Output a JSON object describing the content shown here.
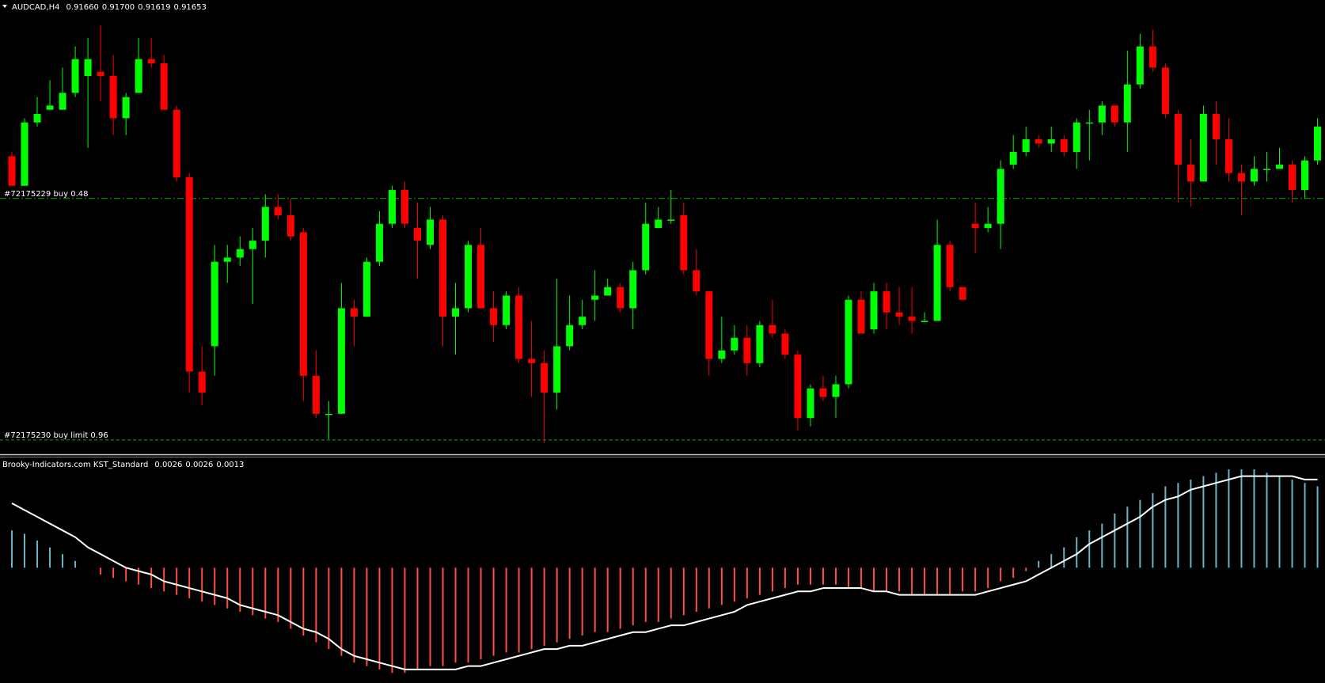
{
  "chart_data": [
    {
      "type": "candlestick",
      "title": "AUDCAD,H4",
      "header_values": [
        0.9166,
        0.917,
        0.91619,
        0.91653
      ],
      "header_value_labels": [
        "0.91660",
        "0.91700",
        "0.91619",
        "0.91653"
      ],
      "up_color": "#00ff00",
      "down_color": "#ff0000",
      "ylim": [
        0.90886,
        0.9196
      ],
      "open": [
        0.9159,
        0.9152,
        0.9167,
        0.917,
        0.917,
        0.9174,
        0.9178,
        0.9179,
        0.9178,
        0.9168,
        0.9174,
        0.9182,
        0.9181,
        0.917,
        0.9154,
        0.9108,
        0.9114,
        0.9134,
        0.9135,
        0.9137,
        0.9139,
        0.9147,
        0.9145,
        0.9141,
        0.9107,
        0.9098,
        0.9098,
        0.9123,
        0.9121,
        0.9134,
        0.9143,
        0.9151,
        0.9142,
        0.9138,
        0.9144,
        0.9121,
        0.9123,
        0.9138,
        0.9123,
        0.9119,
        0.9126,
        0.9111,
        0.911,
        0.9103,
        0.9114,
        0.9119,
        0.9125,
        0.9126,
        0.9128,
        0.9123,
        0.9132,
        0.9142,
        0.9144,
        0.9145,
        0.9132,
        0.9127,
        0.9111,
        0.9113,
        0.9116,
        0.911,
        0.9119,
        0.9117,
        0.9112,
        0.9097,
        0.9104,
        0.9102,
        0.9105,
        0.9125,
        0.9118,
        0.9127,
        0.9122,
        0.9121,
        0.912,
        0.912,
        0.9138,
        0.9128,
        0.9143,
        0.9142,
        0.9143,
        0.9157,
        0.916,
        0.9163,
        0.9162,
        0.9163,
        0.916,
        0.9167,
        0.9167,
        0.9171,
        0.9167,
        0.9176,
        0.9185,
        0.918,
        0.9169,
        0.9157,
        0.9153,
        0.9169,
        0.9163,
        0.9155,
        0.9153,
        0.9156,
        0.9156,
        0.9157,
        0.9151,
        0.9158
      ],
      "high": [
        0.916,
        0.9168,
        0.9173,
        0.9177,
        0.918,
        0.9185,
        0.9187,
        0.919,
        0.9183,
        0.9174,
        0.9187,
        0.9187,
        0.9183,
        0.9171,
        0.9155,
        0.9114,
        0.9138,
        0.9138,
        0.914,
        0.9142,
        0.915,
        0.915,
        0.9149,
        0.9142,
        0.9113,
        0.9101,
        0.9129,
        0.9125,
        0.9135,
        0.9146,
        0.9152,
        0.9153,
        0.9148,
        0.9147,
        0.9145,
        0.9129,
        0.9139,
        0.9142,
        0.9127,
        0.9127,
        0.9128,
        0.912,
        0.9113,
        0.913,
        0.9126,
        0.9125,
        0.9132,
        0.913,
        0.9129,
        0.9134,
        0.9148,
        0.9147,
        0.9151,
        0.9148,
        0.9137,
        0.9127,
        0.9121,
        0.9119,
        0.9119,
        0.912,
        0.9125,
        0.9118,
        0.9113,
        0.9105,
        0.9107,
        0.9107,
        0.9126,
        0.9127,
        0.9129,
        0.9129,
        0.9128,
        0.9128,
        0.9122,
        0.9144,
        0.9139,
        0.9128,
        0.9148,
        0.9147,
        0.9158,
        0.9164,
        0.9166,
        0.9164,
        0.9166,
        0.9164,
        0.9168,
        0.917,
        0.9172,
        0.9171,
        0.9184,
        0.9188,
        0.9189,
        0.9181,
        0.917,
        0.9163,
        0.9171,
        0.9172,
        0.9168,
        0.9157,
        0.9159,
        0.916,
        0.9161,
        0.9158,
        0.9159,
        0.9168
      ],
      "low": [
        0.9152,
        0.9152,
        0.9166,
        0.917,
        0.917,
        0.9173,
        0.9161,
        0.9172,
        0.9164,
        0.9164,
        0.9174,
        0.918,
        0.917,
        0.9153,
        0.9103,
        0.91,
        0.9107,
        0.9129,
        0.9133,
        0.9124,
        0.9135,
        0.9144,
        0.9139,
        0.9101,
        0.9097,
        0.9092,
        0.9098,
        0.9114,
        0.9121,
        0.9133,
        0.9142,
        0.9142,
        0.913,
        0.9137,
        0.9114,
        0.9112,
        0.9122,
        0.9123,
        0.9115,
        0.9118,
        0.911,
        0.9102,
        0.9091,
        0.9099,
        0.9113,
        0.9118,
        0.912,
        0.9126,
        0.9122,
        0.9118,
        0.9131,
        0.9142,
        0.9143,
        0.9131,
        0.9126,
        0.9107,
        0.911,
        0.9112,
        0.9107,
        0.9109,
        0.9116,
        0.9111,
        0.9094,
        0.9095,
        0.9101,
        0.9097,
        0.9104,
        0.9117,
        0.9117,
        0.9118,
        0.9119,
        0.9117,
        0.912,
        0.912,
        0.9127,
        0.9125,
        0.9136,
        0.9141,
        0.9137,
        0.9156,
        0.9159,
        0.9161,
        0.916,
        0.9159,
        0.9156,
        0.9158,
        0.9164,
        0.9166,
        0.916,
        0.9175,
        0.9179,
        0.9168,
        0.9148,
        0.9147,
        0.9153,
        0.9157,
        0.9153,
        0.9145,
        0.9152,
        0.9153,
        0.9156,
        0.9148,
        0.9149,
        0.9157
      ],
      "close": [
        0.9152,
        0.9167,
        0.9169,
        0.9171,
        0.9174,
        0.9182,
        0.9182,
        0.9178,
        0.9168,
        0.9173,
        0.9182,
        0.9181,
        0.917,
        0.9154,
        0.9108,
        0.9103,
        0.9134,
        0.9135,
        0.9137,
        0.9139,
        0.9147,
        0.9145,
        0.914,
        0.9107,
        0.9098,
        0.9098,
        0.9123,
        0.9121,
        0.9134,
        0.9143,
        0.9151,
        0.9143,
        0.9139,
        0.9144,
        0.9121,
        0.9123,
        0.9138,
        0.9123,
        0.9119,
        0.9126,
        0.9111,
        0.911,
        0.9103,
        0.9114,
        0.9119,
        0.9121,
        0.9126,
        0.9128,
        0.9123,
        0.9132,
        0.9143,
        0.9144,
        0.9144,
        0.9132,
        0.9127,
        0.9111,
        0.9113,
        0.9116,
        0.911,
        0.9119,
        0.9117,
        0.9112,
        0.9097,
        0.9104,
        0.9102,
        0.9105,
        0.9125,
        0.9117,
        0.9127,
        0.9122,
        0.9121,
        0.912,
        0.912,
        0.9138,
        0.9128,
        0.9125,
        0.9142,
        0.9143,
        0.9156,
        0.916,
        0.9163,
        0.9162,
        0.9163,
        0.916,
        0.9167,
        0.9167,
        0.9171,
        0.9167,
        0.9176,
        0.9185,
        0.918,
        0.9169,
        0.9157,
        0.9153,
        0.9169,
        0.9163,
        0.9155,
        0.9153,
        0.9156,
        0.9156,
        0.9157,
        0.9151,
        0.9158,
        0.9166
      ],
      "order_lines": [
        {
          "label": "#72175229 buy 0.48",
          "value": 0.9149,
          "color": "#00b000",
          "dash": "8 3 2 3"
        },
        {
          "label": "#72175230 buy limit 0.96",
          "value": 0.90918,
          "color": "#00b000",
          "dash": "4 3"
        }
      ]
    },
    {
      "type": "histogram",
      "title": "Brooky-Indicators.com KST_Standard",
      "header_values": [
        0.0026,
        0.0026,
        0.0013
      ],
      "up_color": "#6ab4cc",
      "down_color": "#ff4f43",
      "line_color": "#ffffff",
      "ylim": [
        -0.0034,
        0.003275
      ],
      "values": [
        0.0011,
        0.001,
        0.0008,
        0.0006,
        0.0004,
        0.0002,
        0,
        -0.0002,
        -0.0003,
        -0.0004,
        -0.0005,
        -0.0006,
        -0.0007,
        -0.0008,
        -0.0009,
        -0.001,
        -0.0011,
        -0.0012,
        -0.0013,
        -0.0014,
        -0.0015,
        -0.0016,
        -0.0018,
        -0.002,
        -0.0022,
        -0.0024,
        -0.0026,
        -0.0028,
        -0.0029,
        -0.003,
        -0.0031,
        -0.0031,
        -0.003,
        -0.0029,
        -0.0029,
        -0.0028,
        -0.0028,
        -0.0027,
        -0.0026,
        -0.0025,
        -0.0025,
        -0.0024,
        -0.0023,
        -0.0022,
        -0.0021,
        -0.002,
        -0.0019,
        -0.0019,
        -0.0018,
        -0.0017,
        -0.0016,
        -0.0016,
        -0.0015,
        -0.0014,
        -0.0013,
        -0.0012,
        -0.0011,
        -0.001,
        -0.0009,
        -0.0008,
        -0.0007,
        -0.0006,
        -0.0005,
        -0.0005,
        -0.0005,
        -0.0005,
        -0.0006,
        -0.0006,
        -0.0007,
        -0.0007,
        -0.0007,
        -0.0008,
        -0.0008,
        -0.0008,
        -0.0008,
        -0.0007,
        -0.0007,
        -0.0006,
        -0.0004,
        -0.0003,
        -0.0001,
        0.0002,
        0.0004,
        0.0006,
        0.0009,
        0.0011,
        0.0013,
        0.0016,
        0.0018,
        0.002,
        0.0022,
        0.0024,
        0.0025,
        0.0026,
        0.0027,
        0.0028,
        0.0029,
        0.0029,
        0.0029,
        0.0028,
        0.0027,
        0.0026,
        0.0025,
        0.0024
      ],
      "line_values": [
        0.0019,
        0.0017,
        0.0015,
        0.0013,
        0.0011,
        0.0009,
        0.0006,
        0.0004,
        0.0002,
        0,
        -0.0001,
        -0.0002,
        -0.0004,
        -0.0005,
        -0.0006,
        -0.0007,
        -0.0008,
        -0.0009,
        -0.0011,
        -0.0012,
        -0.0013,
        -0.0014,
        -0.0016,
        -0.0018,
        -0.0019,
        -0.0021,
        -0.0024,
        -0.0026,
        -0.0027,
        -0.0028,
        -0.0029,
        -0.003,
        -0.003,
        -0.003,
        -0.003,
        -0.003,
        -0.0029,
        -0.0029,
        -0.0028,
        -0.0027,
        -0.0026,
        -0.0025,
        -0.0024,
        -0.0024,
        -0.0023,
        -0.0023,
        -0.0022,
        -0.0021,
        -0.002,
        -0.0019,
        -0.0019,
        -0.0018,
        -0.0017,
        -0.0017,
        -0.0016,
        -0.0015,
        -0.0014,
        -0.0013,
        -0.0011,
        -0.001,
        -0.0009,
        -0.0008,
        -0.0007,
        -0.0007,
        -0.0006,
        -0.0006,
        -0.0006,
        -0.0006,
        -0.0007,
        -0.0007,
        -0.0008,
        -0.0008,
        -0.0008,
        -0.0008,
        -0.0008,
        -0.0008,
        -0.0008,
        -0.0007,
        -0.0006,
        -0.0005,
        -0.0004,
        -0.0002,
        0,
        0.0002,
        0.0004,
        0.0007,
        0.0009,
        0.0011,
        0.0013,
        0.0015,
        0.0018,
        0.002,
        0.0021,
        0.0023,
        0.0024,
        0.0025,
        0.0026,
        0.0027,
        0.0027,
        0.0027,
        0.0027,
        0.0027,
        0.0026,
        0.0026
      ]
    }
  ]
}
